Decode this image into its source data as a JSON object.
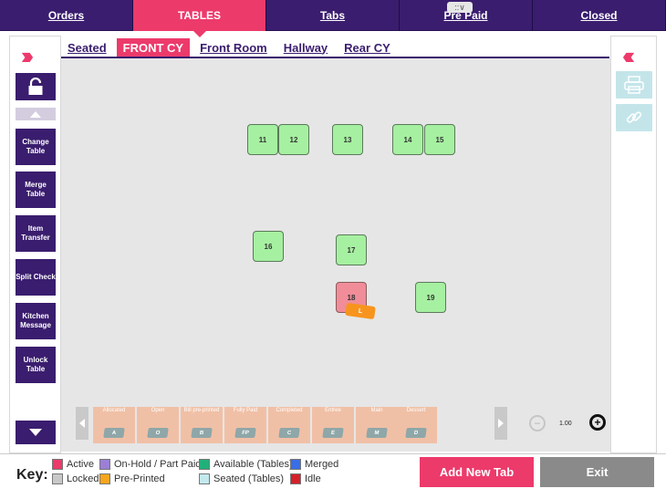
{
  "topnav": {
    "tabs": [
      "Orders",
      "TABLES",
      "Tabs",
      "Pre Paid",
      "Closed"
    ]
  },
  "handle": {
    "label": "::∨"
  },
  "areas": [
    "Seated",
    "FRONT CY",
    "Front Room",
    "Hallway",
    "Rear CY"
  ],
  "sidebar": {
    "change_table": "Change Table",
    "merge_table": "Merge Table",
    "item_transfer": "Item Transfer",
    "split_check": "Split Check",
    "kitchen_message": "Kitchen Message",
    "unlock_table": "Unlock Table"
  },
  "tables": [
    {
      "num": "11",
      "state": "available"
    },
    {
      "num": "12",
      "state": "available"
    },
    {
      "num": "13",
      "state": "available"
    },
    {
      "num": "14",
      "state": "available"
    },
    {
      "num": "15",
      "state": "available"
    },
    {
      "num": "16",
      "state": "available"
    },
    {
      "num": "17",
      "state": "available"
    },
    {
      "num": "18",
      "state": "active"
    },
    {
      "num": "19",
      "state": "available"
    }
  ],
  "badge": {
    "label": "L"
  },
  "statuses": [
    {
      "label": "Allocated",
      "code": "A"
    },
    {
      "label": "Open",
      "code": "O"
    },
    {
      "label": "Bill pre-printed",
      "code": "B"
    },
    {
      "label": "Fully Paid",
      "code": "FP"
    },
    {
      "label": "Completed",
      "code": "C"
    },
    {
      "label": "Entree",
      "code": "E"
    },
    {
      "label": "Main",
      "code": "M"
    },
    {
      "label": "Dessert",
      "code": "D"
    }
  ],
  "zoom": {
    "value": "1.00"
  },
  "key": {
    "label": "Key:",
    "items": [
      {
        "label": "Active",
        "color": "#ec3a6b"
      },
      {
        "label": "On-Hold / Part Paid",
        "color": "#9b7fd6"
      },
      {
        "label": "Available (Tables)",
        "color": "#22b07a"
      },
      {
        "label": "Merged",
        "color": "#3a6ee6"
      },
      {
        "label": "Locked",
        "color": "#c8c8c8"
      },
      {
        "label": "Pre-Printed",
        "color": "#f7a51d"
      },
      {
        "label": "Seated (Tables)",
        "color": "#c3e9ef"
      },
      {
        "label": "Idle",
        "color": "#d4202a"
      }
    ]
  },
  "buttons": {
    "add_new_tab": "Add New Tab",
    "exit": "Exit"
  }
}
